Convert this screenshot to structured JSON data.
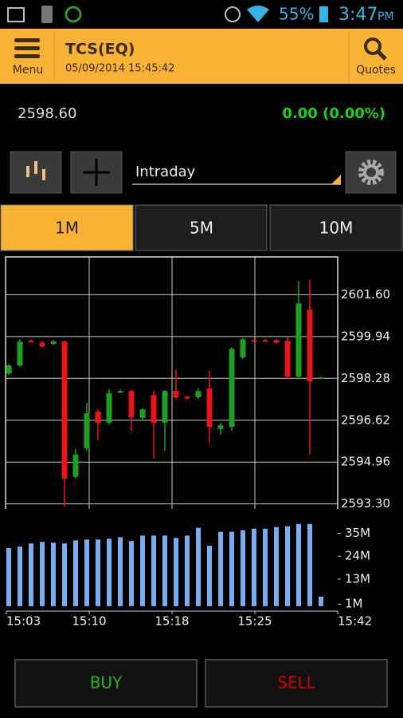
{
  "status_bar": {
    "battery": "55%",
    "time": "3:47",
    "ampm": "PM"
  },
  "header": {
    "menu": "Menu",
    "symbol": "TCS(EQ)",
    "datetime": "05/09/2014 15:45:42",
    "quotes": "Quotes"
  },
  "quote": {
    "price": "2598.60",
    "change": "0.00 (0.00%)"
  },
  "controls": {
    "dropdown": "Intraday"
  },
  "tabs": [
    "1M",
    "5M",
    "10M"
  ],
  "chart_data": [
    {
      "type": "candlestick",
      "up_color": "#1f9e1f",
      "down_color": "#e8161b",
      "grid": true,
      "open": [
        2598.47,
        2598.79,
        2599.78,
        2599.7,
        2599.65,
        2599.74,
        2594.37,
        2595.51,
        2596.96,
        2596.52,
        2597.72,
        2597.78,
        2596.71,
        2597.62,
        2596.52,
        2597.78,
        2597.55,
        2597.53,
        2597.88,
        2596.27,
        2596.36,
        2599.11,
        2599.8,
        2599.8,
        2599.8,
        2599.77,
        2598.35,
        2601.0,
        2598.28
      ],
      "high": [
        2598.85,
        2599.83,
        2599.83,
        2599.75,
        2599.8,
        2599.78,
        2595.48,
        2597.31,
        2597.05,
        2597.84,
        2597.85,
        2597.82,
        2597.1,
        2597.78,
        2597.82,
        2598.63,
        2597.6,
        2597.9,
        2598.57,
        2596.5,
        2599.52,
        2599.88,
        2599.84,
        2599.84,
        2599.84,
        2599.93,
        2602.14,
        2602.2,
        2598.34
      ],
      "low": [
        2598.4,
        2598.75,
        2599.7,
        2599.5,
        2599.6,
        2593.2,
        2594.31,
        2595.41,
        2595.82,
        2596.45,
        2597.7,
        2596.2,
        2596.65,
        2595.1,
        2595.41,
        2597.46,
        2597.45,
        2597.46,
        2595.73,
        2596.04,
        2596.2,
        2599.05,
        2599.72,
        2599.72,
        2599.66,
        2598.25,
        2598.25,
        2595.26,
        2598.26
      ],
      "close": [
        2598.79,
        2599.74,
        2599.74,
        2599.55,
        2599.74,
        2594.31,
        2595.26,
        2596.9,
        2596.52,
        2597.69,
        2597.78,
        2596.74,
        2597.05,
        2596.52,
        2597.78,
        2597.53,
        2597.5,
        2597.78,
        2596.36,
        2596.42,
        2599.45,
        2599.83,
        2599.76,
        2599.76,
        2599.7,
        2598.35,
        2601.25,
        2598.16,
        2598.32
      ],
      "ylim": [
        2593.1,
        2603.1
      ],
      "yticks": [
        {
          "value": 2601.6,
          "label": "2601.60"
        },
        2599.94,
        2598.28,
        2596.62,
        2594.96,
        {
          "value": 2593.3,
          "label": "2593.30"
        }
      ]
    },
    {
      "type": "bar",
      "color": "#78aef0",
      "values": [
        27.9,
        28.6,
        30.1,
        30.9,
        30.5,
        30.1,
        31.6,
        32.0,
        32.0,
        32.4,
        33.1,
        31.3,
        33.9,
        33.9,
        33.9,
        32.8,
        33.9,
        37.6,
        29.0,
        35.7,
        35.7,
        36.5,
        37.2,
        37.2,
        38.0,
        38.4,
        39.5,
        39.5,
        4.6
      ],
      "ylim": [
        -1.6,
        44
      ],
      "yticks": [
        {
          "value": 35,
          "label": "35M"
        },
        {
          "value": 24,
          "label": "24M"
        },
        {
          "value": 13,
          "label": "13M"
        },
        {
          "value": 1,
          "label": "1M"
        }
      ],
      "x_labels": [
        "15:03",
        "15:10",
        "15:18",
        "15:25",
        "15:42"
      ]
    }
  ],
  "buttons": {
    "buy": "BUY",
    "sell": "SELL"
  }
}
